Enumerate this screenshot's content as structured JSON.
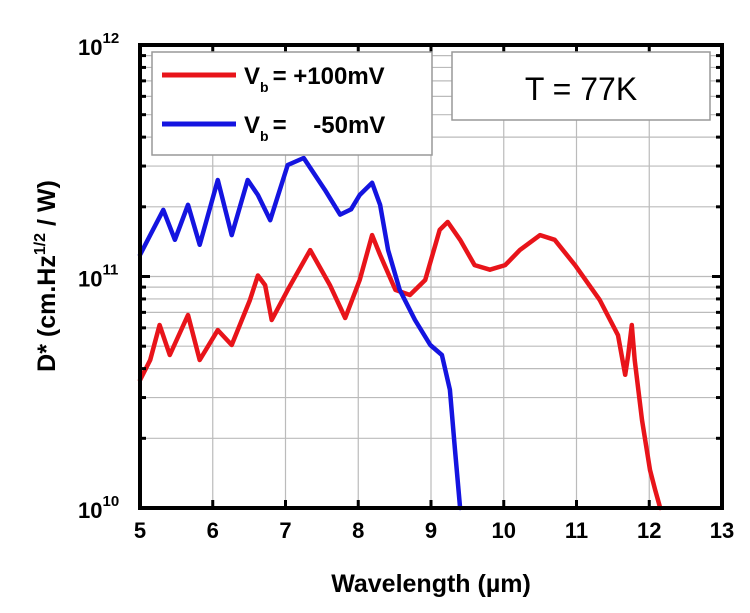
{
  "chart_data": {
    "type": "line",
    "title": "",
    "xlabel": "Wavelength (µm)",
    "ylabel": "D* (cm.Hz^1/2 / W)",
    "ylabel_parts": {
      "pre": "D* (cm.Hz",
      "sup": "1/2",
      "post": " / W)"
    },
    "xlim": [
      5,
      13
    ],
    "ylim": [
      10000000000.0,
      1000000000000.0
    ],
    "yscale": "log",
    "grid": true,
    "x_ticks": [
      "5",
      "6",
      "7",
      "8",
      "9",
      "10",
      "11",
      "12",
      "13"
    ],
    "y_ticks": [
      {
        "base": "10",
        "exp": "10"
      },
      {
        "base": "10",
        "exp": "11"
      },
      {
        "base": "10",
        "exp": "12"
      }
    ],
    "legend_position": "top-left",
    "annotation": "T = 77K",
    "series": [
      {
        "name": "Vb = +100mV",
        "legend": {
          "v": "V",
          "sub": "b",
          "rest": "= +100mV"
        },
        "color": "#e8141a",
        "x": [
          5.0,
          5.14,
          5.27,
          5.41,
          5.66,
          5.82,
          6.07,
          6.26,
          6.51,
          6.62,
          6.72,
          6.81,
          7.03,
          7.34,
          7.61,
          7.82,
          8.02,
          8.19,
          8.3,
          8.51,
          8.71,
          8.92,
          9.12,
          9.23,
          9.4,
          9.6,
          9.81,
          10.02,
          10.22,
          10.5,
          10.7,
          10.98,
          11.32,
          11.57,
          11.67,
          11.71,
          11.76,
          11.8,
          11.9,
          12.01,
          12.08,
          12.15
        ],
        "y": [
          35700000000.0,
          43600000000.0,
          61700000000.0,
          45800000000.0,
          68200000000.0,
          43600000000.0,
          58700000000.0,
          50600000000.0,
          79100000000.0,
          101000000000.0,
          91800000000.0,
          64900000000.0,
          87500000000.0,
          130000000000.0,
          91800000000.0,
          66200000000.0,
          96600000000.0,
          151000000000.0,
          124000000000.0,
          87500000000.0,
          83200000000.0,
          96600000000.0,
          159000000000.0,
          172000000000.0,
          144000000000.0,
          112000000000.0,
          107000000000.0,
          112000000000.0,
          130000000000.0,
          151000000000.0,
          144000000000.0,
          112000000000.0,
          79100000000.0,
          55800000000.0,
          37600000000.0,
          45800000000.0,
          61700000000.0,
          43600000000.0,
          24000000000.0,
          14600000000.0,
          12000000000.0,
          10000000000.0
        ]
      },
      {
        "name": "Vb = -50mV",
        "legend": {
          "v": "V",
          "sub": "b",
          "rest": "=    -50mV"
        },
        "color": "#1414e0",
        "x": [
          5.0,
          5.14,
          5.32,
          5.48,
          5.66,
          5.82,
          6.07,
          6.26,
          6.48,
          6.62,
          6.79,
          7.03,
          7.25,
          7.54,
          7.75,
          7.9,
          8.02,
          8.19,
          8.3,
          8.41,
          8.57,
          8.78,
          8.99,
          9.15,
          9.26,
          9.33,
          9.4
        ],
        "y": [
          124000000000.0,
          151000000000.0,
          194000000000.0,
          144000000000.0,
          204000000000.0,
          137000000000.0,
          261000000000.0,
          151000000000.0,
          261000000000.0,
          225000000000.0,
          175000000000.0,
          303000000000.0,
          325000000000.0,
          237000000000.0,
          185000000000.0,
          195000000000.0,
          225000000000.0,
          254000000000.0,
          204000000000.0,
          130000000000.0,
          87500000000.0,
          64900000000.0,
          50600000000.0,
          45800000000.0,
          32400000000.0,
          17800000000.0,
          10000000000.0
        ]
      }
    ]
  }
}
